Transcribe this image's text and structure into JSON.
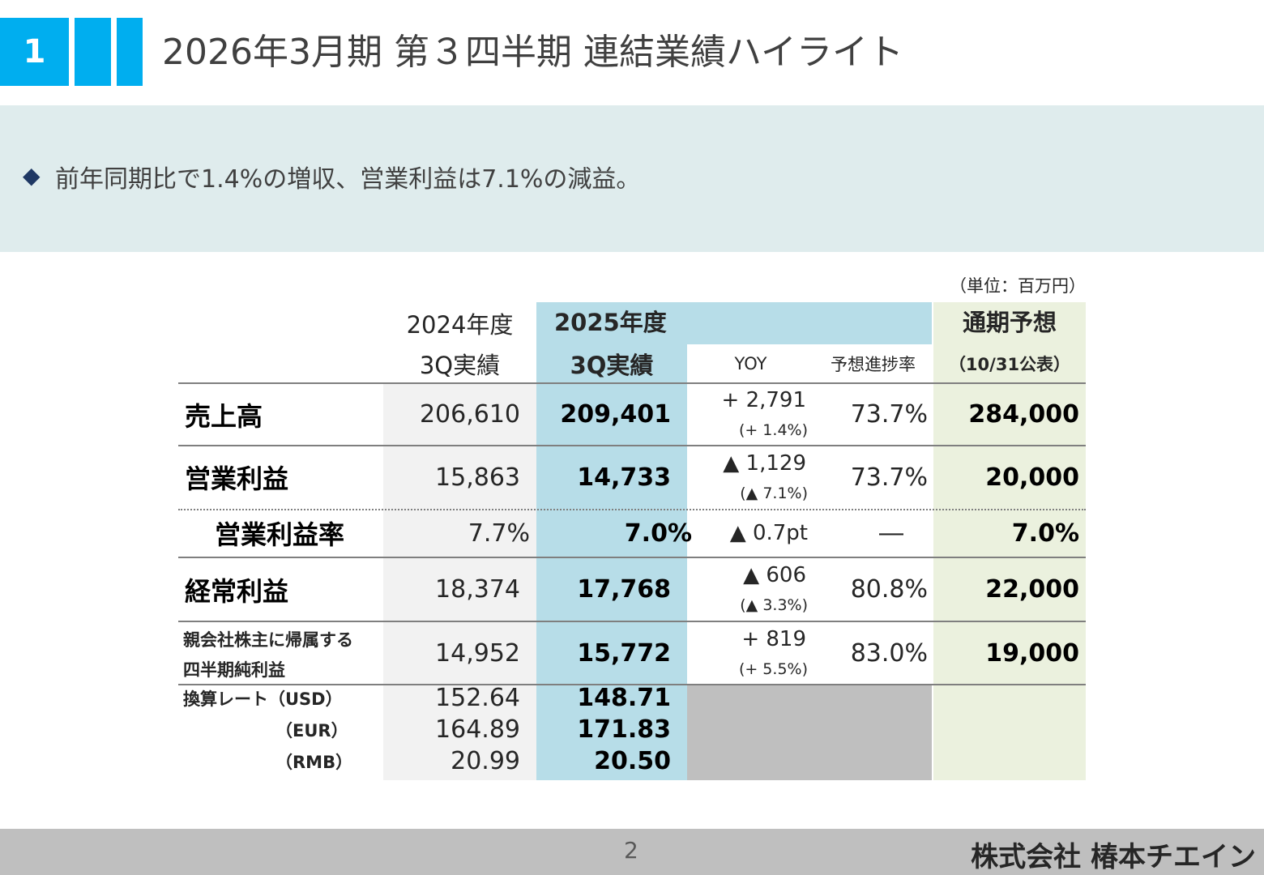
{
  "header": {
    "number": "1",
    "title": "2026年3月期 第３四半期 連結業績ハイライト"
  },
  "summary": "前年同期比で1.4%の増収、営業利益は7.1%の減益。",
  "table": {
    "unit": "（単位：百万円）",
    "headers": {
      "prev_year": "2024年度",
      "prev_period": "3Q実績",
      "curr_year": "2025年度",
      "curr_period": "3Q実績",
      "yoy": "YOY",
      "progress": "予想進捗率",
      "forecast": "通期予想",
      "forecast_note": "（10/31公表）"
    },
    "rows": [
      {
        "label": "売上高",
        "prev": "206,610",
        "curr": "209,401",
        "yoy": "+ 2,791",
        "yoy_pct": "(+ 1.4%)",
        "progress": "73.7%",
        "forecast": "284,000"
      },
      {
        "label": "営業利益",
        "prev": "15,863",
        "curr": "14,733",
        "yoy": "▲ 1,129",
        "yoy_pct": "(▲ 7.1%)",
        "progress": "73.7%",
        "forecast": "20,000"
      },
      {
        "label": "営業利益率",
        "prev": "7.7%",
        "curr": "7.0%",
        "yoy": "▲ 0.7pt",
        "progress": "―",
        "forecast": "7.0%"
      },
      {
        "label": "経常利益",
        "prev": "18,374",
        "curr": "17,768",
        "yoy": "▲ 606",
        "yoy_pct": "(▲ 3.3%)",
        "progress": "80.8%",
        "forecast": "22,000"
      },
      {
        "label": "親会社株主に帰属する",
        "label2": "四半期純利益",
        "prev": "14,952",
        "curr": "15,772",
        "yoy": "+ 819",
        "yoy_pct": "(+ 5.5%)",
        "progress": "83.0%",
        "forecast": "19,000"
      }
    ],
    "rates": [
      {
        "label": "換算レート（USD）",
        "prev": "152.64",
        "curr": "148.71"
      },
      {
        "label": "（EUR）",
        "prev": "164.89",
        "curr": "171.83"
      },
      {
        "label": "（RMB）",
        "prev": "20.99",
        "curr": "20.50"
      }
    ]
  },
  "footer": {
    "page": "2",
    "company": "株式会社 椿本チエイン"
  }
}
